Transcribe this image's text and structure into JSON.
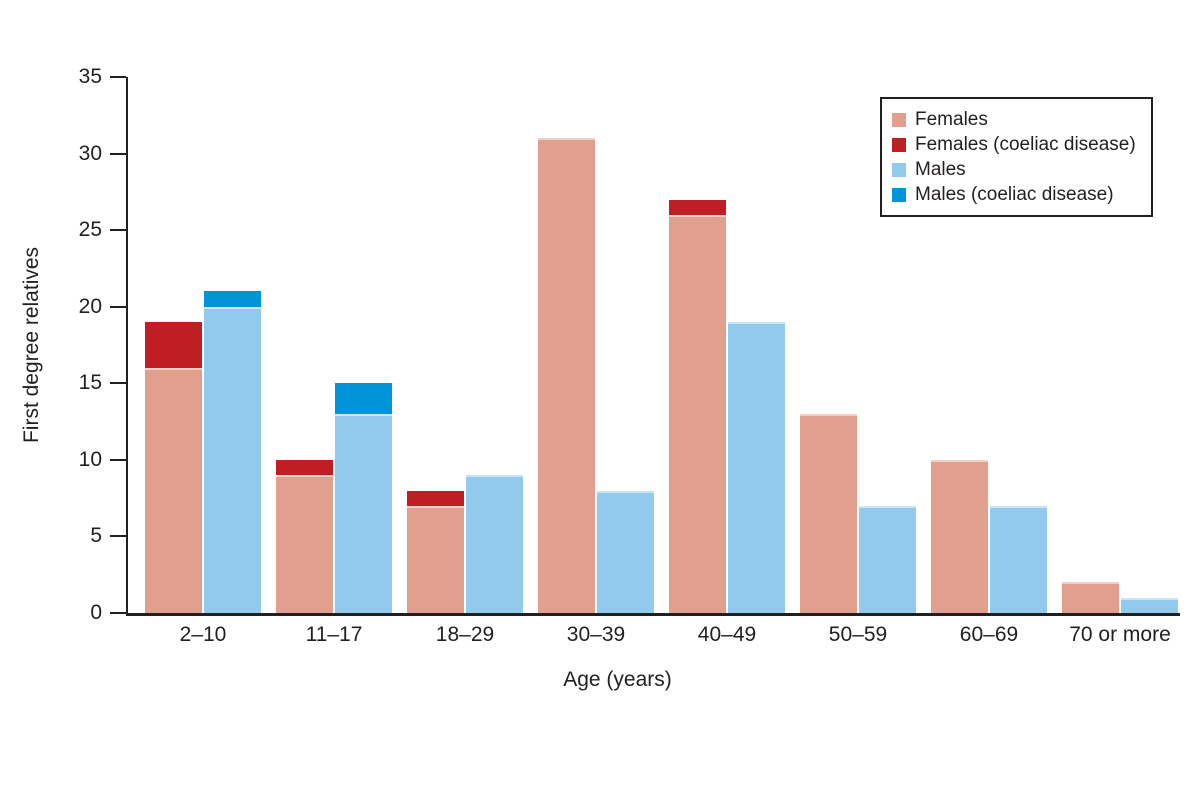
{
  "chart_data": {
    "type": "bar",
    "variant": "grouped-stacked",
    "title": "",
    "xlabel": "Age (years)",
    "ylabel": "First degree relatives",
    "categories": [
      "2–10",
      "11–17",
      "18–29",
      "30–39",
      "40–49",
      "50–59",
      "60–69",
      "70 or more"
    ],
    "series": [
      {
        "name": "Females",
        "stack": "females",
        "color": "#E0A08D",
        "values": [
          16,
          9,
          7,
          31,
          26,
          13,
          10,
          2
        ]
      },
      {
        "name": "Females (coeliac disease)",
        "stack": "females",
        "color": "#C01E25",
        "values": [
          3,
          1,
          1,
          0,
          1,
          0,
          0,
          0
        ]
      },
      {
        "name": "Males",
        "stack": "males",
        "color": "#92CAED",
        "values": [
          20,
          13,
          9,
          8,
          19,
          7,
          7,
          1
        ]
      },
      {
        "name": "Males (coeliac disease)",
        "stack": "males",
        "color": "#0095D8",
        "values": [
          1,
          2,
          0,
          0,
          0,
          0,
          0,
          0
        ]
      }
    ],
    "stack_totals": {
      "females": [
        19,
        10,
        8,
        31,
        27,
        13,
        10,
        2
      ],
      "males": [
        21,
        15,
        9,
        8,
        19,
        7,
        7,
        1
      ]
    },
    "ylim": [
      0,
      35
    ],
    "yticks": [
      0,
      5,
      10,
      15,
      20,
      25,
      30,
      35
    ],
    "grid": false,
    "legend_position": "top-right",
    "axis_color": "#231F20",
    "text_color": "#231F20",
    "background": "#FFFFFF"
  }
}
